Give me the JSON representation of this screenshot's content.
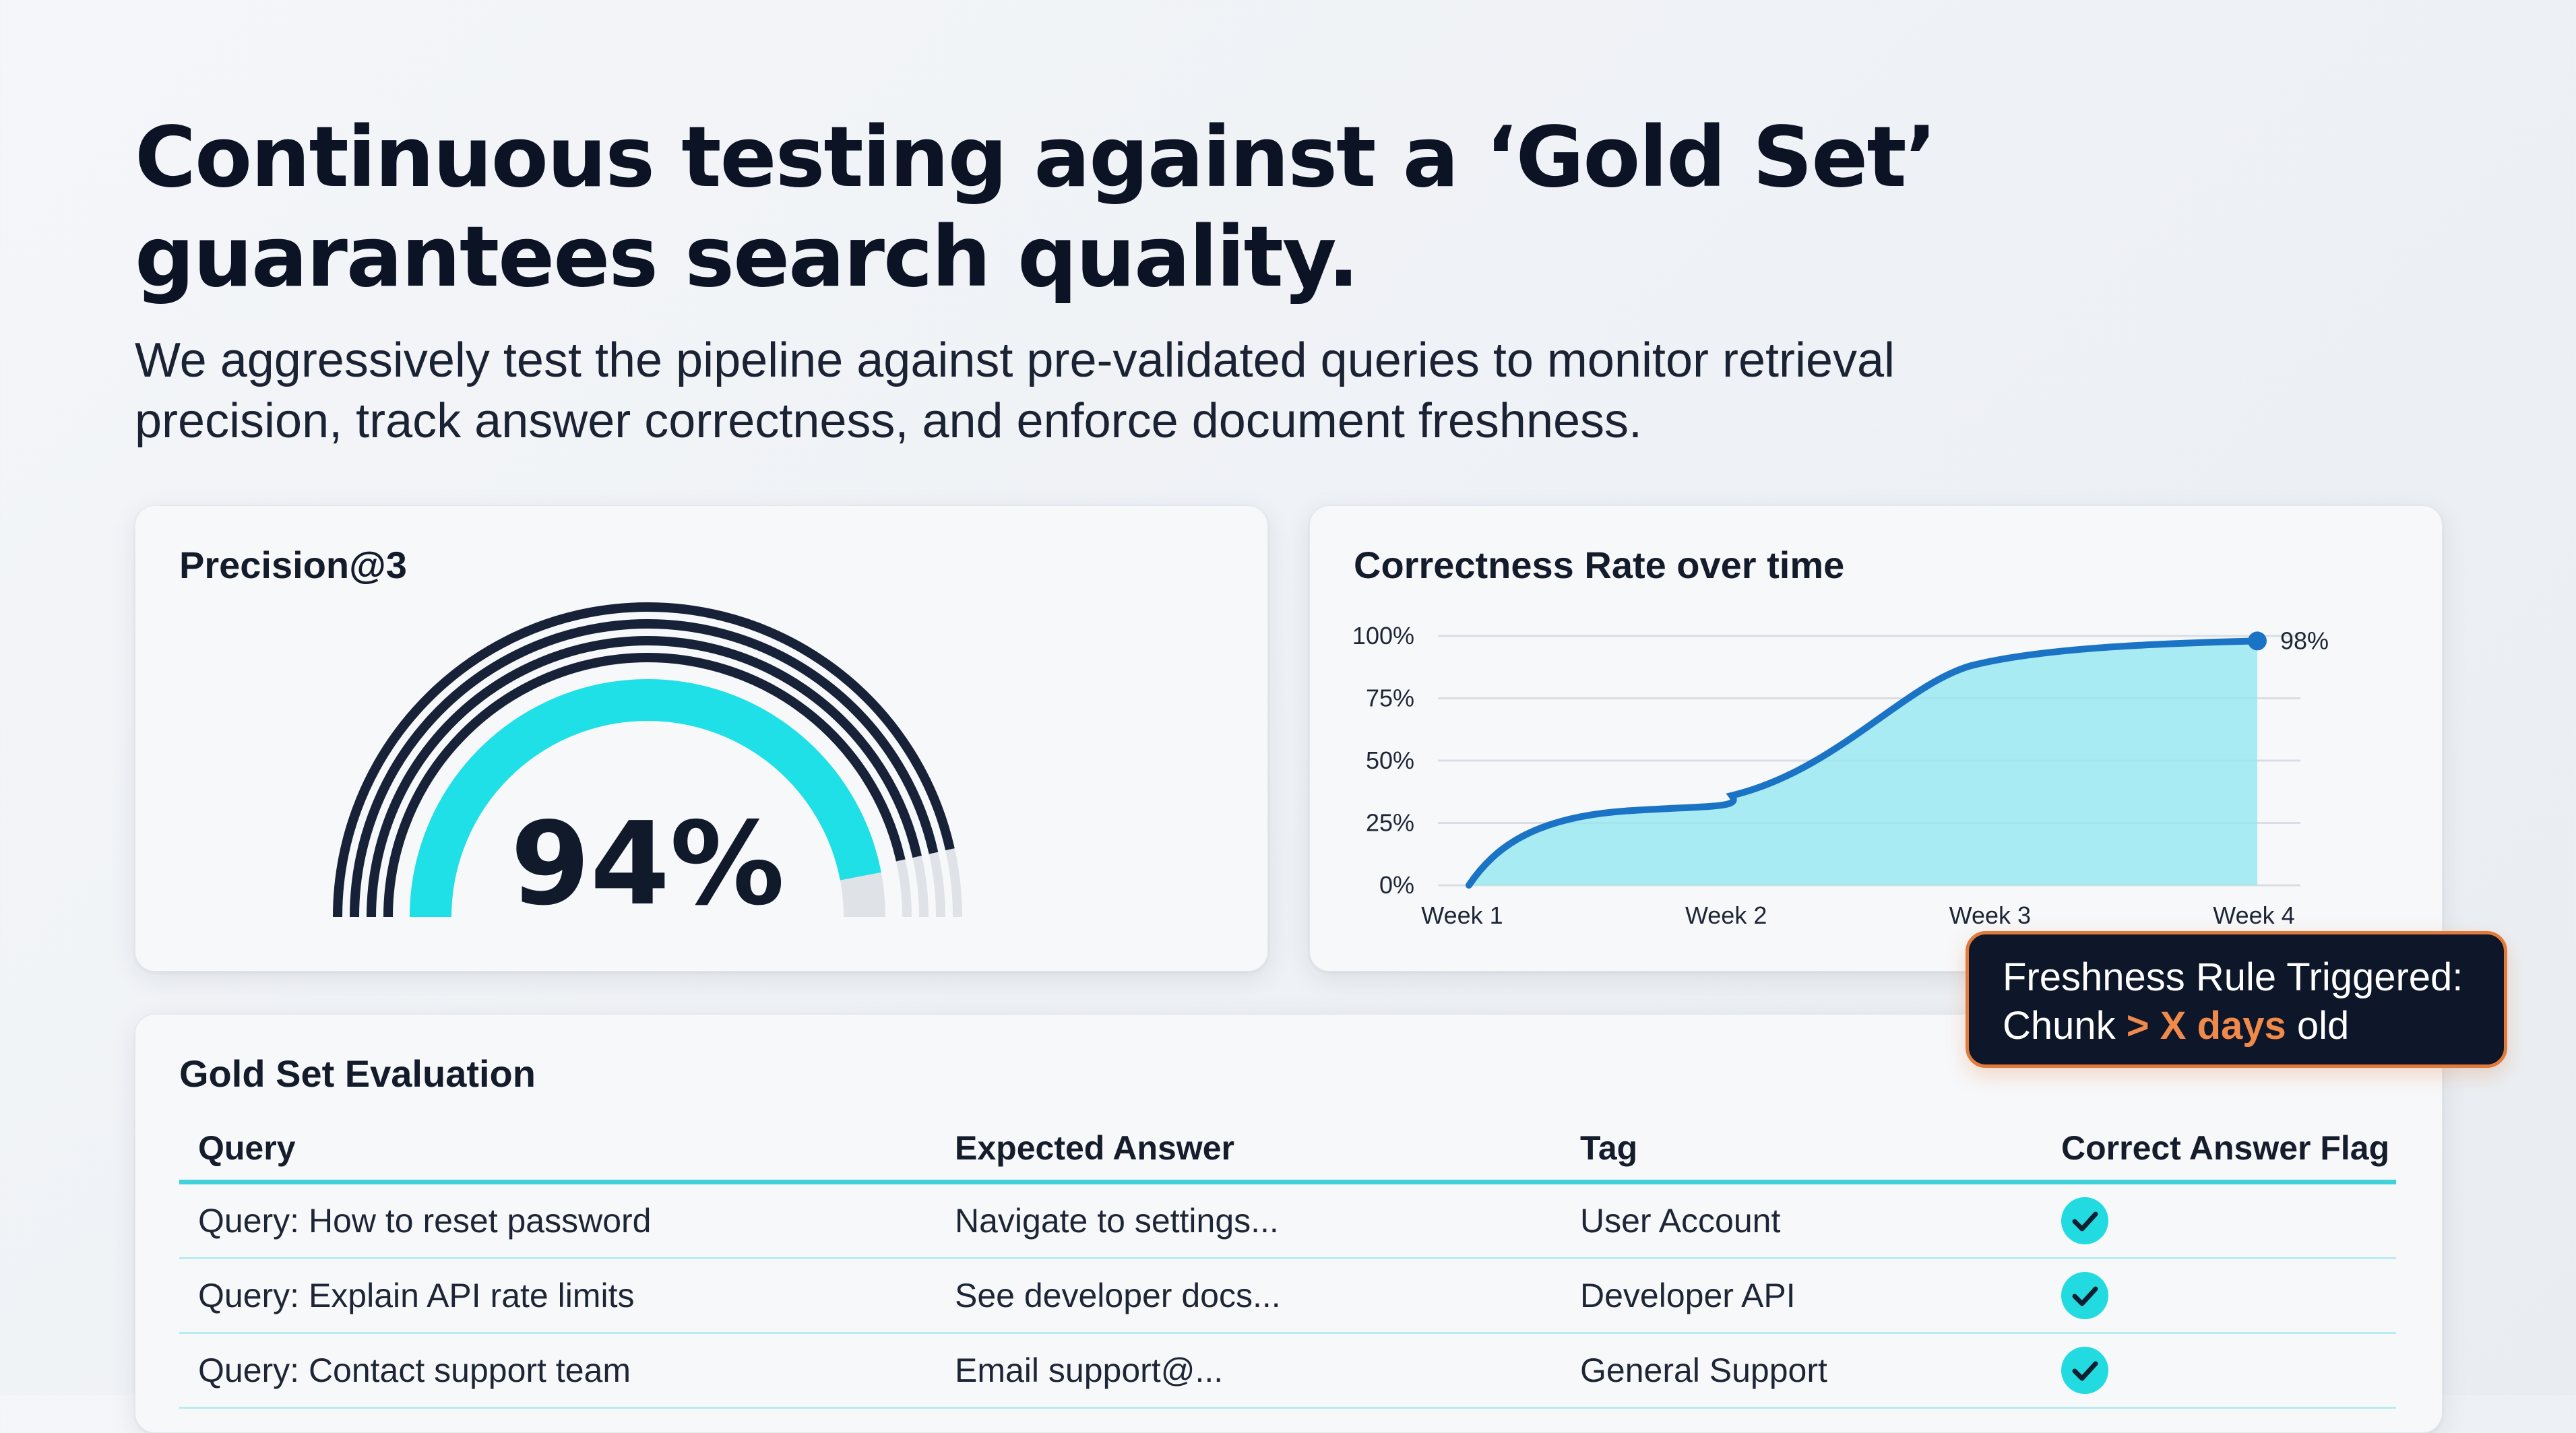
{
  "headline": {
    "line1": "Continuous testing against a ‘Gold Set’",
    "line2": "guarantees search quality."
  },
  "subtitle": {
    "line1": "We aggressively test the pipeline against pre-validated queries to monitor retrieval",
    "line2": "precision, track answer correctness, and enforce document freshness."
  },
  "precision_card": {
    "title": "Precision@3",
    "value_label": "94%",
    "value": 0.94,
    "colors": {
      "fill": "#1fe0e6",
      "rings": "#172238",
      "track": "#dfe3e8"
    }
  },
  "correctness_card": {
    "title": "Correctness Rate over time",
    "end_label": "98%"
  },
  "chart_data": {
    "type": "area",
    "title": "Correctness Rate over time",
    "categories": [
      "Week 1",
      "Week 2",
      "Week 3",
      "Week 4"
    ],
    "series": [
      {
        "values": [
          0,
          33,
          88,
          98
        ]
      }
    ],
    "yticks": [
      "0%",
      "25%",
      "50%",
      "75%",
      "100%"
    ],
    "ylim": [
      0,
      100
    ],
    "grid": true,
    "end_label": "98%",
    "colors": {
      "line": "#1b73c5",
      "fill": "#8fe7f0",
      "point": "#1b73c5"
    }
  },
  "tooltip": {
    "line1": "Freshness Rule Triggered:",
    "line2_prefix": "Chunk ",
    "line2_highlight": "> X days",
    "line2_suffix": " old"
  },
  "table": {
    "title": "Gold Set Evaluation",
    "columns": [
      "Query",
      "Expected Answer",
      "Tag",
      "Correct Answer Flag"
    ],
    "rows": [
      {
        "query": "Query: How to reset password",
        "expected": "Navigate to settings...",
        "tag": "User Account",
        "flag": "check-icon"
      },
      {
        "query": "Query: Explain API rate limits",
        "expected": "See developer docs...",
        "tag": "Developer API",
        "flag": "check-icon"
      },
      {
        "query": "Query: Contact support team",
        "expected": "Email support@...",
        "tag": "General Support",
        "flag": "check-icon"
      }
    ]
  }
}
